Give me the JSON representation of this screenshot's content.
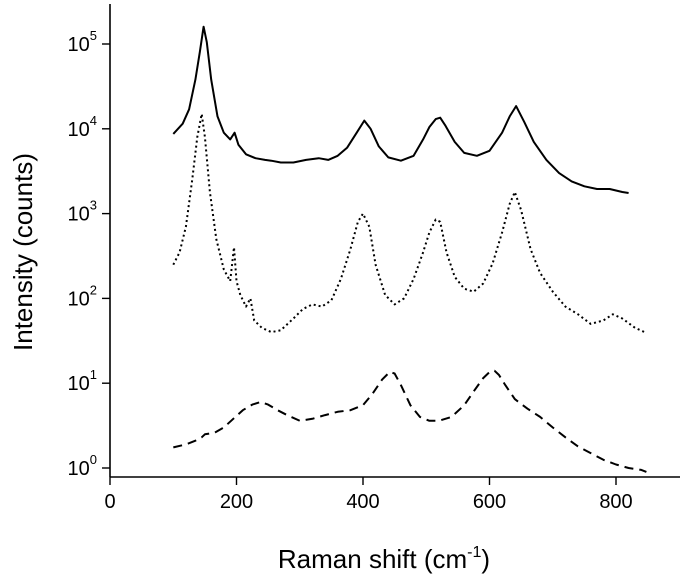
{
  "chart_data": {
    "type": "line",
    "title": "",
    "xlabel": "Raman shift (cm",
    "xlabel_sup": "-1",
    "xlabel_end": ")",
    "ylabel": "Intensity (counts)",
    "xlim": [
      0,
      900
    ],
    "ylim": [
      0.8,
      300000
    ],
    "yscale": "log",
    "x_ticks": [
      0,
      200,
      400,
      600,
      800
    ],
    "y_ticks": [
      {
        "value": 1,
        "base": "10",
        "exp": "0"
      },
      {
        "value": 10,
        "base": "10",
        "exp": "1"
      },
      {
        "value": 100,
        "base": "10",
        "exp": "2"
      },
      {
        "value": 1000,
        "base": "10",
        "exp": "3"
      },
      {
        "value": 10000,
        "base": "10",
        "exp": "4"
      },
      {
        "value": 100000,
        "base": "10",
        "exp": "5"
      }
    ],
    "grid": false,
    "legend": "none",
    "series": [
      {
        "style": "solid",
        "x": [
          100,
          115,
          125,
          135,
          142,
          148,
          153,
          160,
          170,
          180,
          190,
          197,
          203,
          215,
          230,
          245,
          255,
          270,
          290,
          310,
          330,
          345,
          360,
          375,
          390,
          402,
          412,
          425,
          440,
          460,
          480,
          495,
          505,
          515,
          522,
          530,
          545,
          560,
          580,
          600,
          620,
          632,
          642,
          655,
          670,
          690,
          710,
          730,
          750,
          770,
          790,
          810,
          820
        ],
        "y": [
          8700,
          11500,
          17000,
          38000,
          80000,
          160000,
          105000,
          38000,
          14000,
          9000,
          7500,
          9000,
          6500,
          5000,
          4500,
          4300,
          4200,
          4000,
          4000,
          4300,
          4500,
          4300,
          4800,
          6000,
          9000,
          12500,
          10000,
          6200,
          4600,
          4200,
          4800,
          7500,
          10500,
          13000,
          13500,
          11000,
          7000,
          5200,
          4800,
          5500,
          9000,
          14000,
          18500,
          12000,
          7000,
          4300,
          3000,
          2400,
          2100,
          1950,
          1950,
          1800,
          1750
        ]
      },
      {
        "style": "dotted",
        "x": [
          100,
          110,
          120,
          130,
          138,
          145,
          150,
          158,
          168,
          180,
          190,
          196,
          200,
          206,
          215,
          222,
          228,
          240,
          255,
          270,
          290,
          305,
          320,
          335,
          350,
          365,
          380,
          392,
          400,
          410,
          420,
          435,
          450,
          465,
          480,
          495,
          505,
          515,
          522,
          532,
          545,
          560,
          575,
          590,
          605,
          620,
          632,
          640,
          650,
          665,
          680,
          700,
          720,
          740,
          760,
          780,
          795,
          810,
          830,
          845
        ],
        "y": [
          250,
          350,
          700,
          2500,
          8000,
          15000,
          8000,
          1800,
          500,
          220,
          160,
          400,
          160,
          110,
          80,
          100,
          55,
          45,
          40,
          42,
          58,
          75,
          85,
          80,
          95,
          170,
          380,
          800,
          1000,
          700,
          250,
          110,
          85,
          100,
          170,
          350,
          600,
          850,
          800,
          350,
          180,
          130,
          120,
          150,
          260,
          600,
          1300,
          1800,
          1100,
          380,
          200,
          120,
          80,
          65,
          50,
          55,
          65,
          58,
          45,
          40
        ]
      },
      {
        "style": "dashed",
        "x": [
          100,
          120,
          135,
          145,
          150,
          165,
          180,
          195,
          210,
          225,
          238,
          250,
          265,
          280,
          300,
          320,
          340,
          360,
          380,
          400,
          415,
          430,
          442,
          450,
          460,
          475,
          490,
          505,
          520,
          540,
          560,
          575,
          590,
          600,
          608,
          615,
          625,
          640,
          660,
          680,
          700,
          720,
          740,
          760,
          780,
          800,
          820,
          840,
          848
        ],
        "y": [
          1.75,
          1.9,
          2.1,
          2.3,
          2.5,
          2.6,
          3.0,
          3.8,
          4.8,
          5.6,
          6.0,
          5.6,
          4.8,
          4.2,
          3.6,
          3.8,
          4.2,
          4.6,
          4.8,
          5.5,
          7.5,
          11.0,
          13.5,
          13.0,
          9.5,
          5.5,
          4.0,
          3.6,
          3.6,
          4.0,
          5.5,
          8.0,
          11.5,
          13.5,
          14.0,
          12.5,
          9.5,
          6.5,
          5.0,
          4.0,
          3.0,
          2.3,
          1.8,
          1.5,
          1.25,
          1.1,
          1.0,
          0.95,
          0.9
        ]
      }
    ]
  }
}
